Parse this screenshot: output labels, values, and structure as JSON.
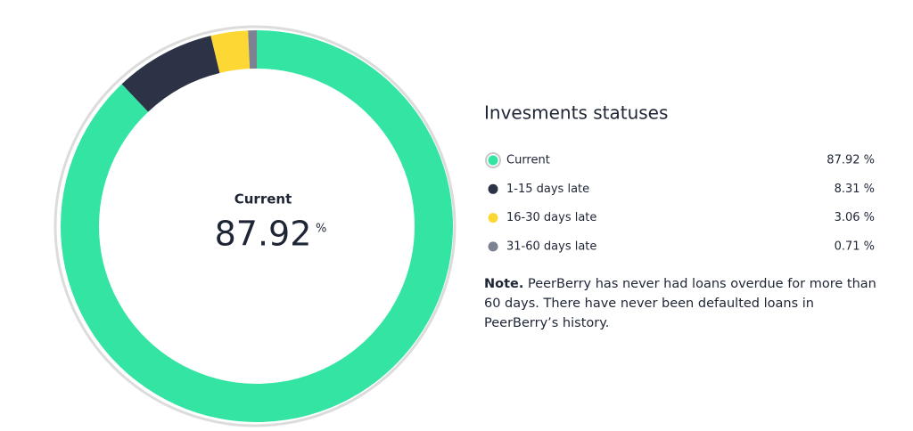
{
  "chart_data": {
    "type": "donut",
    "title": "Invesments statuses",
    "categories": [
      "Current",
      "1-15 days late",
      "16-30 days late",
      "31-60 days late"
    ],
    "values": [
      87.92,
      8.31,
      3.06,
      0.71
    ],
    "value_labels": [
      "87.92 %",
      "8.31 %",
      "3.06 %",
      "0.71 %"
    ],
    "colors": [
      "#33e4a3",
      "#2c3347",
      "#fdd835",
      "#7c8291"
    ],
    "center_unit": "%",
    "note_label": "Note.",
    "note": "PeerBerry has never had loans overdue for more than 60 days. There have never been defaulted loans in PeerBerry’s history."
  }
}
